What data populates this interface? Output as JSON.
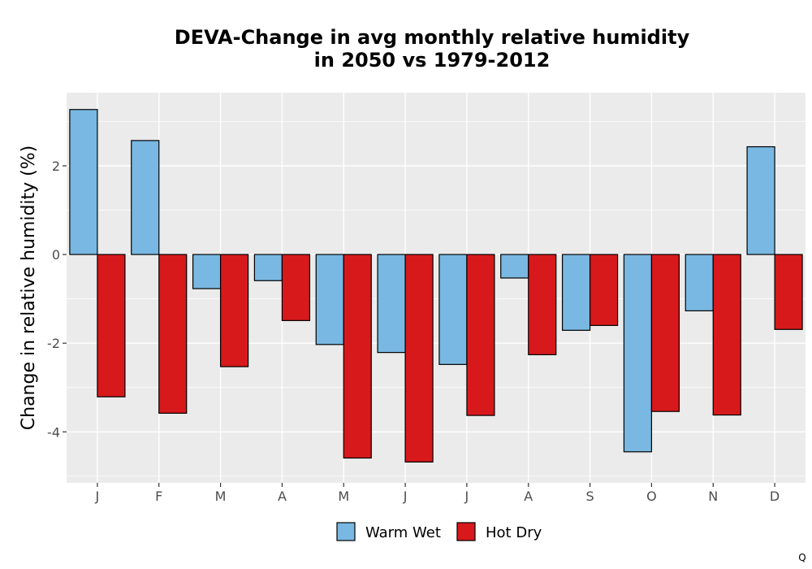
{
  "chart_data": {
    "type": "bar",
    "title_lines": [
      "DEVA-Change in avg monthly relative humidity",
      "in 2050 vs 1979-2012"
    ],
    "ylabel": "Change in relative humidity (%)",
    "xlabel": "",
    "categories": [
      "J",
      "F",
      "M",
      "A",
      "M",
      "J",
      "J",
      "A",
      "S",
      "O",
      "N",
      "D"
    ],
    "series": [
      {
        "name": "Warm Wet",
        "color": "#79b8e2",
        "values": [
          3.27,
          2.57,
          -0.77,
          -0.59,
          -2.03,
          -2.21,
          -2.48,
          -0.53,
          -1.71,
          -4.45,
          -1.27,
          2.43
        ]
      },
      {
        "name": "Hot Dry",
        "color": "#d7191c",
        "values": [
          -3.21,
          -3.58,
          -2.53,
          -1.49,
          -4.59,
          -4.68,
          -3.63,
          -2.26,
          -1.6,
          -3.54,
          -3.62,
          -1.69
        ]
      }
    ],
    "yticks": [
      -4,
      -2,
      0,
      2
    ],
    "ylim": [
      -5.15,
      3.65
    ],
    "grid": true,
    "panel_background": "#ebebeb",
    "legend_position": "bottom"
  },
  "corner_mark": "Q"
}
